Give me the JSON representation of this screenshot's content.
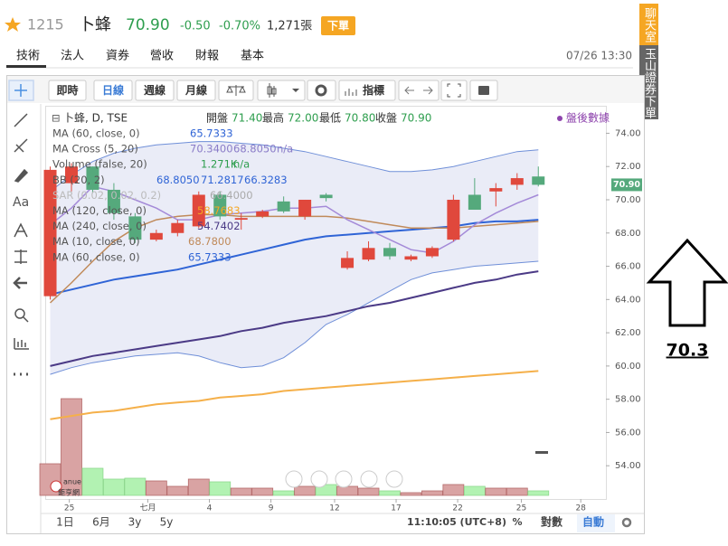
{
  "header": {
    "symbol": "1215",
    "name": "卜蜂",
    "price": "70.90",
    "change": "-0.50",
    "change_pct": "-0.70%",
    "volume": "1,271張",
    "order_button": "下單"
  },
  "tabs": [
    "技術",
    "法人",
    "資券",
    "營收",
    "財報",
    "基本"
  ],
  "datetime": "07/26 13:30",
  "side": {
    "chat": "聊天室",
    "broker": "玉山證券下單"
  },
  "toolbar": [
    "即時",
    "日線",
    "週線",
    "月線",
    "指標"
  ],
  "tools": {
    "text_tool": "Aa"
  },
  "legend": {
    "title": "卜蜂, D, TSE",
    "ohlc": [
      "開盤",
      "71.40",
      "最高",
      "72.00",
      "最低",
      "70.80",
      "收盤",
      "70.90"
    ],
    "rows": [
      [
        "MA (60, close, 0)",
        "65.7333"
      ],
      [
        "MA Cross (5, 20)",
        "70.3400",
        "68.8050",
        "n/a"
      ],
      [
        "Volume (false, 20)",
        "1.271K",
        "n/a"
      ],
      [
        "BB (20, 2)",
        "68.8050",
        "71.2817",
        "66.3283"
      ],
      [
        "SAR (0.02, 0.02, 0.2)",
        "66.4000"
      ],
      [
        "MA (120, close, 0)",
        "58.7683"
      ],
      [
        "MA (240, close, 0)",
        "54.7402"
      ],
      [
        "MA (10, close, 0)",
        "68.7800"
      ],
      [
        "MA (60, close, 0)",
        "65.7333"
      ]
    ],
    "after_hours": "盤後數據"
  },
  "chart_data": {
    "type": "candlestick",
    "candles": [
      {
        "open": 64.2,
        "high": 72.0,
        "low": 64.0,
        "close": 71.8
      },
      {
        "open": 71.0,
        "high": 72.2,
        "low": 70.5,
        "close": 72.0
      },
      {
        "open": 72.0,
        "high": 72.0,
        "low": 70.4,
        "close": 70.6
      },
      {
        "open": 70.6,
        "high": 71.0,
        "low": 68.8,
        "close": 69.2
      },
      {
        "open": 69.0,
        "high": 69.2,
        "low": 67.4,
        "close": 67.6
      },
      {
        "open": 67.6,
        "high": 68.2,
        "low": 67.5,
        "close": 68.0
      },
      {
        "open": 68.0,
        "high": 68.8,
        "low": 67.8,
        "close": 68.6
      },
      {
        "open": 68.4,
        "high": 70.5,
        "low": 68.3,
        "close": 70.3
      },
      {
        "open": 70.3,
        "high": 70.5,
        "low": 68.8,
        "close": 69.0
      },
      {
        "open": 68.8,
        "high": 69.2,
        "low": 68.2,
        "close": 68.9
      },
      {
        "open": 69.0,
        "high": 69.4,
        "low": 68.9,
        "close": 69.3
      },
      {
        "open": 69.9,
        "high": 70.2,
        "low": 69.2,
        "close": 69.3
      },
      {
        "open": 69.0,
        "high": 70.0,
        "low": 68.8,
        "close": 70.0
      },
      {
        "open": 70.3,
        "high": 70.4,
        "low": 69.9,
        "close": 70.1
      },
      {
        "open": 65.9,
        "high": 66.9,
        "low": 65.8,
        "close": 66.5
      },
      {
        "open": 66.4,
        "high": 67.5,
        "low": 66.3,
        "close": 67.1
      },
      {
        "open": 67.1,
        "high": 67.4,
        "low": 66.4,
        "close": 66.6
      },
      {
        "open": 66.4,
        "high": 66.7,
        "low": 66.3,
        "close": 66.6
      },
      {
        "open": 66.6,
        "high": 67.2,
        "low": 66.5,
        "close": 67.1
      },
      {
        "open": 67.6,
        "high": 70.3,
        "low": 67.5,
        "close": 70.0
      },
      {
        "open": 70.3,
        "high": 71.3,
        "low": 69.4,
        "close": 69.4
      },
      {
        "open": 70.5,
        "high": 71.0,
        "low": 69.6,
        "close": 70.7
      },
      {
        "open": 70.9,
        "high": 71.6,
        "low": 70.6,
        "close": 71.3
      },
      {
        "open": 71.4,
        "high": 72.0,
        "low": 70.8,
        "close": 70.9
      }
    ],
    "up_color": "#e0483c",
    "down_color": "#55a97c",
    "volume": [
      35,
      107,
      30,
      18,
      19,
      16,
      10,
      18,
      15,
      8,
      8,
      5,
      10,
      12,
      10,
      8,
      5,
      3,
      5,
      12,
      10,
      8,
      8,
      5
    ],
    "volume_lim": [
      0,
      120
    ],
    "band": {
      "upper": [
        70.5,
        71.5,
        72.3,
        72.8,
        73.1,
        73.3,
        73.4,
        73.5,
        73.5,
        73.4,
        73.3,
        73.1,
        72.9,
        72.6,
        72.3,
        72.0,
        71.7,
        71.7,
        71.8,
        72.0,
        72.3,
        72.6,
        72.9,
        73.0
      ],
      "lower": [
        59.5,
        59.9,
        60.2,
        60.4,
        60.6,
        60.7,
        60.8,
        60.6,
        60.2,
        59.9,
        60.0,
        60.5,
        61.4,
        62.5,
        63.1,
        63.8,
        64.5,
        65.2,
        65.6,
        65.8,
        66.0,
        66.1,
        66.2,
        66.3
      ],
      "color": "#6f8fd8"
    },
    "lines": [
      {
        "color": "#2f64d6",
        "width": 2,
        "values": [
          64.3,
          64.6,
          64.9,
          65.2,
          65.4,
          65.6,
          65.8,
          66.1,
          66.4,
          66.7,
          67.0,
          67.3,
          67.6,
          67.8,
          67.9,
          68.0,
          68.1,
          68.2,
          68.3,
          68.4,
          68.6,
          68.7,
          68.7,
          68.8
        ]
      },
      {
        "color": "#4b3a86",
        "width": 2,
        "values": [
          60.0,
          60.3,
          60.6,
          60.8,
          61.0,
          61.2,
          61.4,
          61.6,
          61.8,
          62.1,
          62.3,
          62.6,
          62.8,
          63.0,
          63.3,
          63.6,
          63.8,
          64.1,
          64.4,
          64.7,
          65.0,
          65.2,
          65.5,
          65.7
        ]
      },
      {
        "color": "#f5b04a",
        "width": 2,
        "values": [
          56.8,
          57.0,
          57.2,
          57.3,
          57.5,
          57.7,
          57.8,
          57.9,
          58.1,
          58.2,
          58.3,
          58.5,
          58.6,
          58.7,
          58.8,
          58.9,
          59.0,
          59.1,
          59.2,
          59.3,
          59.4,
          59.5,
          59.6,
          59.7
        ]
      },
      {
        "color": "#c08a5a",
        "width": 1.5,
        "values": [
          63.8,
          65.0,
          66.3,
          67.5,
          68.3,
          68.8,
          69.0,
          69.1,
          69.1,
          69.0,
          69.0,
          69.0,
          69.0,
          69.0,
          68.9,
          68.7,
          68.5,
          68.3,
          68.3,
          68.3,
          68.4,
          68.5,
          68.6,
          68.7
        ]
      },
      {
        "color": "#a48ad8",
        "width": 1.5,
        "values": [
          68.5,
          69.5,
          70.8,
          70.5,
          70.0,
          69.5,
          68.8,
          68.8,
          69.1,
          69.2,
          69.3,
          69.5,
          69.5,
          69.6,
          68.8,
          68.2,
          67.6,
          67.0,
          66.8,
          67.5,
          68.5,
          69.2,
          69.8,
          70.3
        ]
      }
    ],
    "xlim": [
      -0.15,
      26.1
    ],
    "xticks": [
      {
        "value": 0.9,
        "label": "25"
      },
      {
        "value": 4.6,
        "label": "七月"
      },
      {
        "value": 7.5,
        "label": "4"
      },
      {
        "value": 10.4,
        "label": "9"
      },
      {
        "value": 13.4,
        "label": "12"
      },
      {
        "value": 16.3,
        "label": "17"
      },
      {
        "value": 19.2,
        "label": "22"
      },
      {
        "value": 22.2,
        "label": "25"
      },
      {
        "value": 25.0,
        "label": "28"
      }
    ],
    "ylim": [
      52.0,
      75.6
    ],
    "yticks": [
      {
        "value": 54,
        "label": "54.00"
      },
      {
        "value": 56,
        "label": "56.00"
      },
      {
        "value": 58,
        "label": "58.00"
      },
      {
        "value": 60,
        "label": "60.00"
      },
      {
        "value": 62,
        "label": "62.00"
      },
      {
        "value": 64,
        "label": "64.00"
      },
      {
        "value": 66,
        "label": "66.00"
      },
      {
        "value": 68,
        "label": "68.00"
      },
      {
        "value": 70,
        "label": "70.00"
      },
      {
        "value": 72,
        "label": "72.00"
      },
      {
        "value": 74,
        "label": "74.00"
      }
    ],
    "price_tag": "70.90",
    "logo": [
      "anue",
      "鉅亨網"
    ]
  },
  "bottom_bar": {
    "ranges": [
      "1日",
      "6月",
      "3y",
      "5y"
    ],
    "time": "11:10:05 (UTC+8)",
    "percent": "%",
    "log": "對數",
    "auto": "自動"
  },
  "annotation": "70.3"
}
